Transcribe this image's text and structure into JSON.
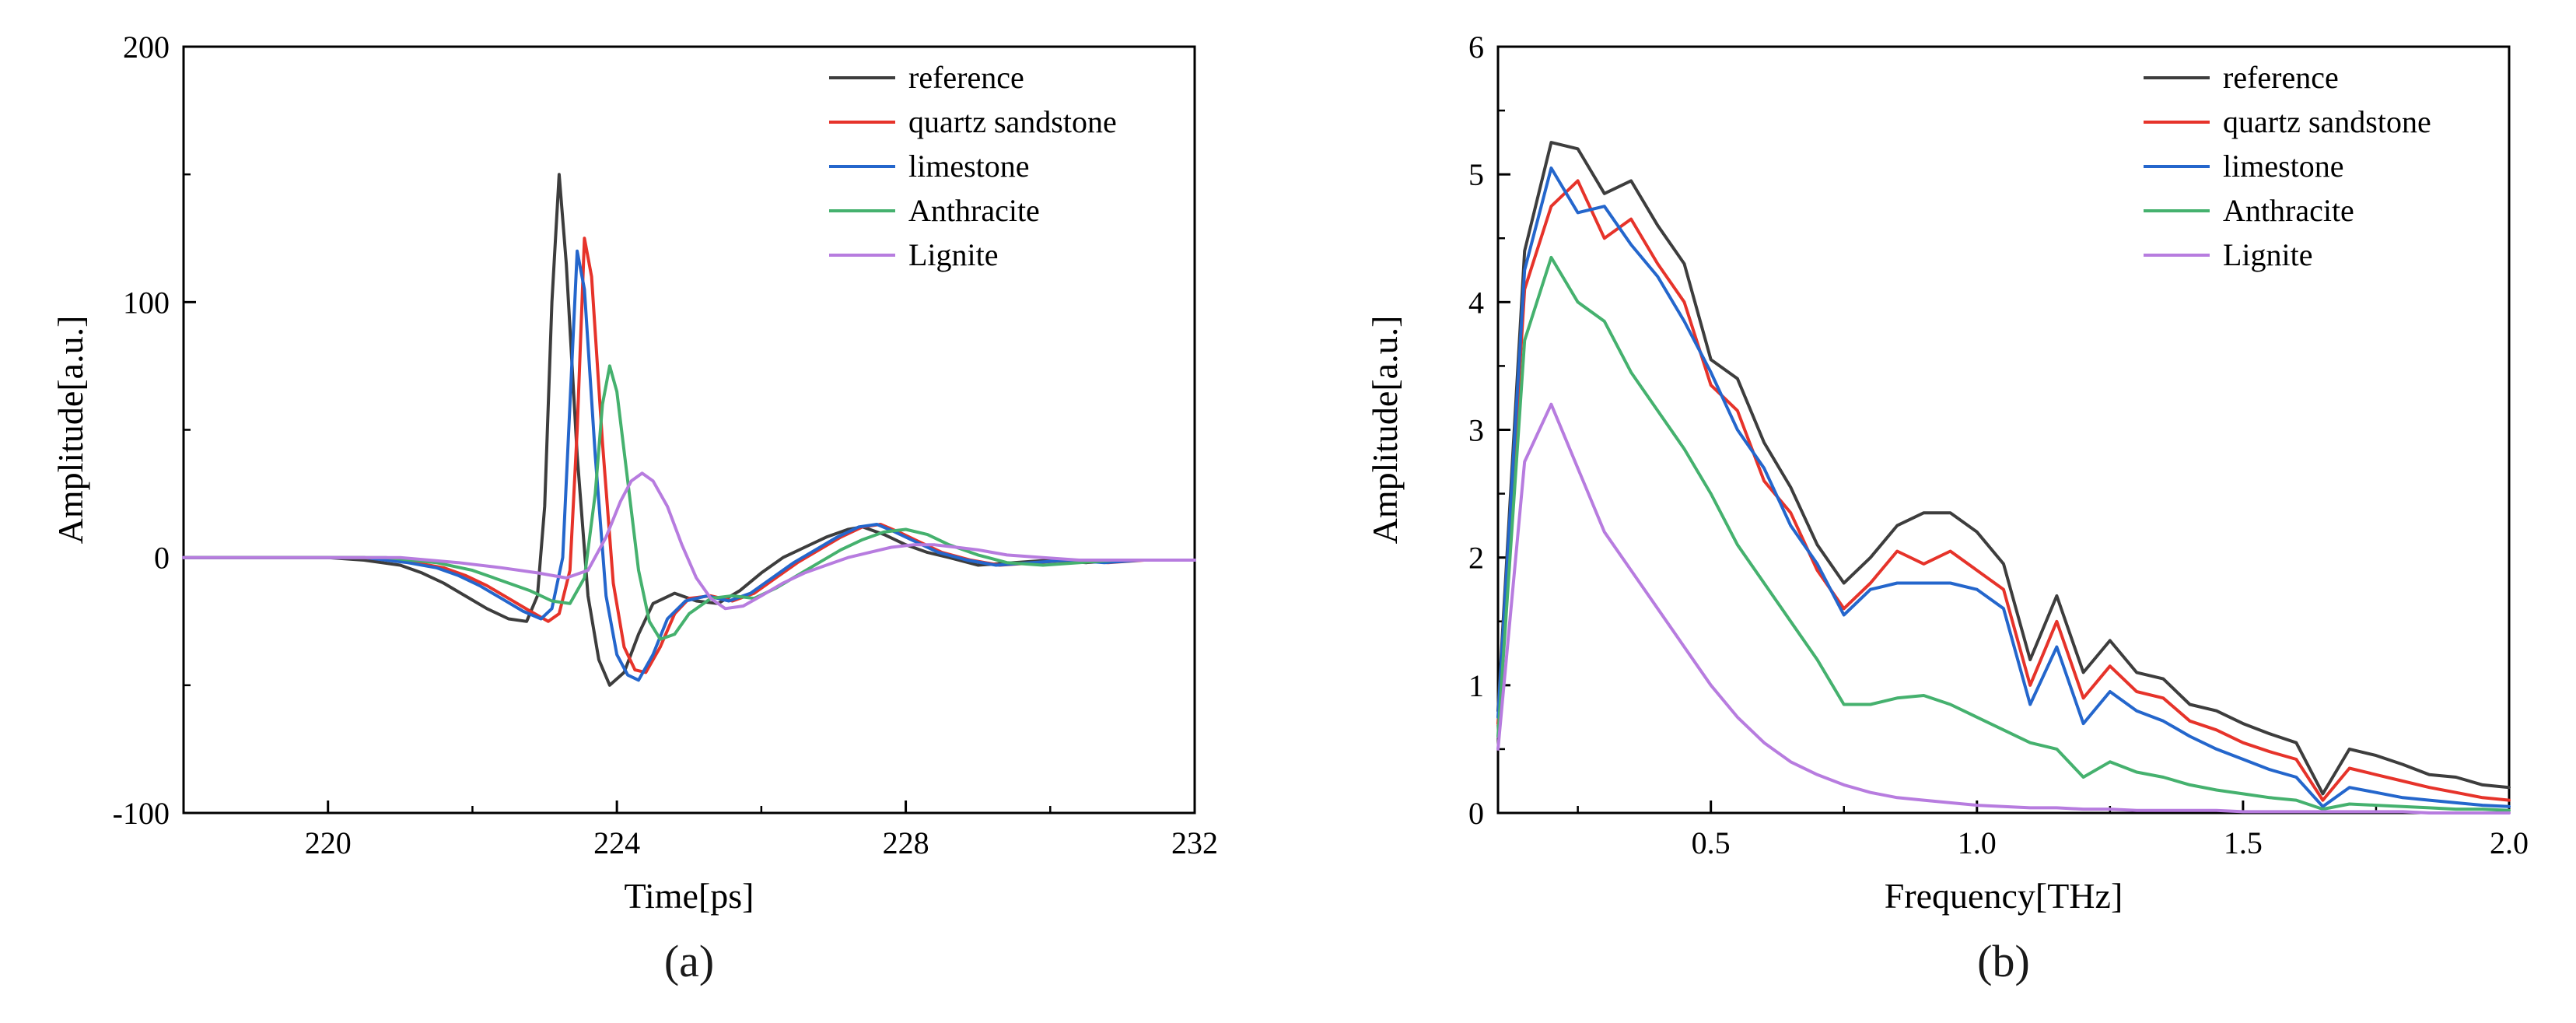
{
  "figure": {
    "caption_a": "(a)",
    "caption_b": "(b)"
  },
  "colors": {
    "reference": "#3d3d3d",
    "quartz_sandstone": "#e6332a",
    "limestone": "#2466cc",
    "anthracite": "#45b16e",
    "lignite": "#b77cdf",
    "axis": "#000000"
  },
  "chart_data": [
    {
      "type": "line",
      "id": "time-domain",
      "title": "",
      "xlabel": "Time[ps]",
      "ylabel": "Amplitude[a.u.]",
      "xlim": [
        218,
        232
      ],
      "ylim": [
        -100,
        200
      ],
      "xticks": [
        220,
        224,
        228,
        232
      ],
      "xtick_labels": [
        "220",
        "224",
        "228",
        "232"
      ],
      "xminor": [
        222,
        226,
        230
      ],
      "yticks": [
        -100,
        0,
        100,
        200
      ],
      "ytick_labels": [
        "-100",
        "0",
        "100",
        "200"
      ],
      "yminor": [
        -50,
        50,
        150
      ],
      "grid": false,
      "legend_position": "top-right",
      "series": [
        {
          "name": "reference",
          "color": "#3d3d3d",
          "x": [
            218,
            220,
            220.5,
            221,
            221.3,
            221.6,
            221.9,
            222.2,
            222.5,
            222.75,
            222.9,
            223.0,
            223.1,
            223.2,
            223.3,
            223.45,
            223.6,
            223.75,
            223.9,
            224.1,
            224.3,
            224.5,
            224.8,
            225.1,
            225.4,
            225.7,
            226.0,
            226.3,
            226.6,
            226.9,
            227.2,
            227.4,
            227.7,
            228.0,
            228.3,
            228.6,
            229.0,
            229.5,
            230.0,
            230.5,
            231.0,
            231.5,
            232.0
          ],
          "y": [
            0,
            0,
            -1,
            -3,
            -6,
            -10,
            -15,
            -20,
            -24,
            -25,
            -15,
            20,
            100,
            150,
            115,
            40,
            -15,
            -40,
            -50,
            -45,
            -30,
            -18,
            -14,
            -17,
            -18,
            -13,
            -6,
            0,
            4,
            8,
            11,
            12,
            9,
            5,
            2,
            0,
            -3,
            -2,
            -1,
            -2,
            -1,
            -1,
            -1
          ]
        },
        {
          "name": "quartz sandstone",
          "color": "#e6332a",
          "x": [
            218,
            220.5,
            221.2,
            221.6,
            221.9,
            222.2,
            222.5,
            222.8,
            223.05,
            223.2,
            223.35,
            223.45,
            223.55,
            223.65,
            223.8,
            223.95,
            224.1,
            224.25,
            224.4,
            224.6,
            224.8,
            225.0,
            225.3,
            225.6,
            225.9,
            226.2,
            226.5,
            226.8,
            227.1,
            227.4,
            227.65,
            227.9,
            228.2,
            228.5,
            228.9,
            229.3,
            229.8,
            230.3,
            230.8,
            231.3,
            231.8,
            232.0
          ],
          "y": [
            0,
            0,
            -2,
            -4,
            -7,
            -11,
            -16,
            -21,
            -25,
            -22,
            -5,
            50,
            125,
            110,
            45,
            -10,
            -35,
            -44,
            -45,
            -35,
            -22,
            -16,
            -15,
            -17,
            -14,
            -8,
            -2,
            3,
            8,
            12,
            13,
            10,
            6,
            2,
            -1,
            -3,
            -2,
            -1,
            -2,
            -1,
            -1,
            -1
          ]
        },
        {
          "name": "limestone",
          "color": "#2466cc",
          "x": [
            218,
            220.5,
            221.1,
            221.5,
            221.8,
            222.1,
            222.4,
            222.7,
            222.95,
            223.1,
            223.25,
            223.35,
            223.45,
            223.55,
            223.7,
            223.85,
            224.0,
            224.15,
            224.3,
            224.5,
            224.7,
            224.95,
            225.25,
            225.55,
            225.85,
            226.15,
            226.45,
            226.75,
            227.05,
            227.35,
            227.6,
            227.85,
            228.15,
            228.45,
            228.85,
            229.25,
            229.75,
            230.25,
            230.75,
            231.25,
            231.75,
            232.0
          ],
          "y": [
            0,
            0,
            -2,
            -4,
            -7,
            -11,
            -16,
            -21,
            -24,
            -20,
            0,
            60,
            120,
            105,
            40,
            -15,
            -38,
            -46,
            -48,
            -38,
            -24,
            -17,
            -15,
            -17,
            -14,
            -8,
            -2,
            3,
            8,
            12,
            13,
            10,
            6,
            2,
            -1,
            -3,
            -2,
            -1,
            -2,
            -1,
            -1,
            -1
          ]
        },
        {
          "name": "Anthracite",
          "color": "#45b16e",
          "x": [
            218,
            220.8,
            221.5,
            222.0,
            222.4,
            222.8,
            223.1,
            223.35,
            223.55,
            223.7,
            223.8,
            223.9,
            224.0,
            224.15,
            224.3,
            224.45,
            224.6,
            224.8,
            225.0,
            225.3,
            225.6,
            225.9,
            226.2,
            226.5,
            226.8,
            227.1,
            227.4,
            227.7,
            228.0,
            228.3,
            228.6,
            229.0,
            229.4,
            229.9,
            230.4,
            230.9,
            231.4,
            231.9,
            232.0
          ],
          "y": [
            0,
            0,
            -2,
            -5,
            -9,
            -13,
            -17,
            -18,
            -8,
            25,
            60,
            75,
            65,
            30,
            -5,
            -25,
            -32,
            -30,
            -22,
            -16,
            -15,
            -16,
            -12,
            -7,
            -2,
            3,
            7,
            10,
            11,
            9,
            5,
            1,
            -2,
            -3,
            -2,
            -1,
            -1,
            -1,
            -1
          ]
        },
        {
          "name": "Lignite",
          "color": "#b77cdf",
          "x": [
            218,
            221.0,
            221.8,
            222.4,
            222.9,
            223.3,
            223.6,
            223.85,
            224.05,
            224.2,
            224.35,
            224.5,
            224.7,
            224.9,
            225.1,
            225.3,
            225.5,
            225.75,
            226.0,
            226.3,
            226.6,
            226.9,
            227.2,
            227.5,
            227.8,
            228.1,
            228.4,
            228.7,
            229.0,
            229.4,
            229.9,
            230.4,
            230.9,
            231.4,
            231.9,
            232.0
          ],
          "y": [
            0,
            0,
            -2,
            -4,
            -6,
            -8,
            -5,
            8,
            22,
            30,
            33,
            30,
            20,
            5,
            -8,
            -16,
            -20,
            -19,
            -15,
            -10,
            -6,
            -3,
            0,
            2,
            4,
            5,
            5,
            4,
            3,
            1,
            0,
            -1,
            -1,
            -1,
            -1,
            -1
          ]
        }
      ]
    },
    {
      "type": "line",
      "id": "frequency-domain",
      "title": "",
      "xlabel": "Frequency[THz]",
      "ylabel": "Amplitude[a.u.]",
      "xlim": [
        0.1,
        2.0
      ],
      "ylim": [
        0,
        6
      ],
      "xticks": [
        0.5,
        1.0,
        1.5,
        2.0
      ],
      "xtick_labels": [
        "0.5",
        "1.0",
        "1.5",
        "2.0"
      ],
      "xminor": [
        0.25,
        0.75,
        1.25,
        1.75
      ],
      "yticks": [
        0,
        1,
        2,
        3,
        4,
        5,
        6
      ],
      "ytick_labels": [
        "0",
        "1",
        "2",
        "3",
        "4",
        "5",
        "6"
      ],
      "yminor": [
        0.5,
        1.5,
        2.5,
        3.5,
        4.5,
        5.5
      ],
      "grid": false,
      "legend_position": "top-right",
      "x": [
        0.1,
        0.15,
        0.2,
        0.25,
        0.3,
        0.35,
        0.4,
        0.45,
        0.5,
        0.55,
        0.6,
        0.65,
        0.7,
        0.75,
        0.8,
        0.85,
        0.9,
        0.95,
        1.0,
        1.05,
        1.1,
        1.15,
        1.2,
        1.25,
        1.3,
        1.35,
        1.4,
        1.45,
        1.5,
        1.55,
        1.6,
        1.65,
        1.7,
        1.75,
        1.8,
        1.85,
        1.9,
        1.95,
        2.0
      ],
      "series": [
        {
          "name": "reference",
          "color": "#3d3d3d",
          "y": [
            0.8,
            4.4,
            5.25,
            5.2,
            4.85,
            4.95,
            4.6,
            4.3,
            3.55,
            3.4,
            2.9,
            2.55,
            2.1,
            1.8,
            2.0,
            2.25,
            2.35,
            2.35,
            2.2,
            1.95,
            1.2,
            1.7,
            1.1,
            1.35,
            1.1,
            1.05,
            0.85,
            0.8,
            0.7,
            0.62,
            0.55,
            0.15,
            0.5,
            0.45,
            0.38,
            0.3,
            0.28,
            0.22,
            0.2
          ]
        },
        {
          "name": "quartz sandstone",
          "color": "#e6332a",
          "y": [
            0.7,
            4.1,
            4.75,
            4.95,
            4.5,
            4.65,
            4.3,
            4.0,
            3.35,
            3.15,
            2.6,
            2.35,
            1.9,
            1.6,
            1.8,
            2.05,
            1.95,
            2.05,
            1.9,
            1.75,
            1.0,
            1.5,
            0.9,
            1.15,
            0.95,
            0.9,
            0.72,
            0.65,
            0.55,
            0.48,
            0.42,
            0.1,
            0.35,
            0.3,
            0.25,
            0.2,
            0.16,
            0.12,
            0.1
          ]
        },
        {
          "name": "limestone",
          "color": "#2466cc",
          "y": [
            0.75,
            4.25,
            5.05,
            4.7,
            4.75,
            4.45,
            4.2,
            3.85,
            3.45,
            3.0,
            2.7,
            2.25,
            1.95,
            1.55,
            1.75,
            1.8,
            1.8,
            1.8,
            1.75,
            1.6,
            0.85,
            1.3,
            0.7,
            0.95,
            0.8,
            0.72,
            0.6,
            0.5,
            0.42,
            0.34,
            0.28,
            0.05,
            0.2,
            0.16,
            0.12,
            0.1,
            0.08,
            0.06,
            0.05
          ]
        },
        {
          "name": "Anthracite",
          "color": "#45b16e",
          "y": [
            0.6,
            3.7,
            4.35,
            4.0,
            3.85,
            3.45,
            3.15,
            2.85,
            2.5,
            2.1,
            1.8,
            1.5,
            1.2,
            0.85,
            0.85,
            0.9,
            0.92,
            0.85,
            0.75,
            0.65,
            0.55,
            0.5,
            0.28,
            0.4,
            0.32,
            0.28,
            0.22,
            0.18,
            0.15,
            0.12,
            0.1,
            0.03,
            0.07,
            0.06,
            0.05,
            0.04,
            0.03,
            0.03,
            0.02
          ]
        },
        {
          "name": "Lignite",
          "color": "#b77cdf",
          "y": [
            0.5,
            2.75,
            3.2,
            2.7,
            2.2,
            1.9,
            1.6,
            1.3,
            1.0,
            0.75,
            0.55,
            0.4,
            0.3,
            0.22,
            0.16,
            0.12,
            0.1,
            0.08,
            0.06,
            0.05,
            0.04,
            0.04,
            0.03,
            0.03,
            0.02,
            0.02,
            0.02,
            0.02,
            0.01,
            0.01,
            0.01,
            0.01,
            0.01,
            0.01,
            0.01,
            0.0,
            0.0,
            0.0,
            0.0
          ]
        }
      ]
    }
  ]
}
